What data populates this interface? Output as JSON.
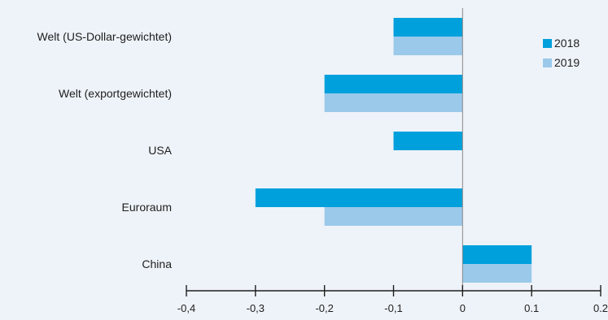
{
  "chart_data": {
    "type": "bar",
    "orientation": "horizontal",
    "categories": [
      "Welt (US-Dollar-gewichtet)",
      "Welt (exportgewichtet)",
      "USA",
      "Euroraum",
      "China"
    ],
    "series": [
      {
        "name": "2018",
        "color": "#00a0dc",
        "values": [
          -0.1,
          -0.2,
          -0.1,
          -0.3,
          0.1
        ]
      },
      {
        "name": "2019",
        "color": "#9ac9ea",
        "values": [
          -0.1,
          -0.2,
          0,
          -0.2,
          0.1
        ]
      }
    ],
    "x_ticks": [
      -0.4,
      -0.3,
      -0.2,
      -0.1,
      0,
      0.1,
      0.2
    ],
    "x_tick_labels": [
      "-0,4",
      "-0,3",
      "-0,2",
      "-0,1",
      "0",
      "0.1",
      "0.2"
    ],
    "xlim": [
      -0.4,
      0.2
    ],
    "title": "",
    "xlabel": "",
    "ylabel": "",
    "grid": false,
    "legend_position": "top-right"
  },
  "colors": {
    "background": "#eef3f9",
    "axis": "#1e1e1e",
    "zero_line": "#888888"
  }
}
